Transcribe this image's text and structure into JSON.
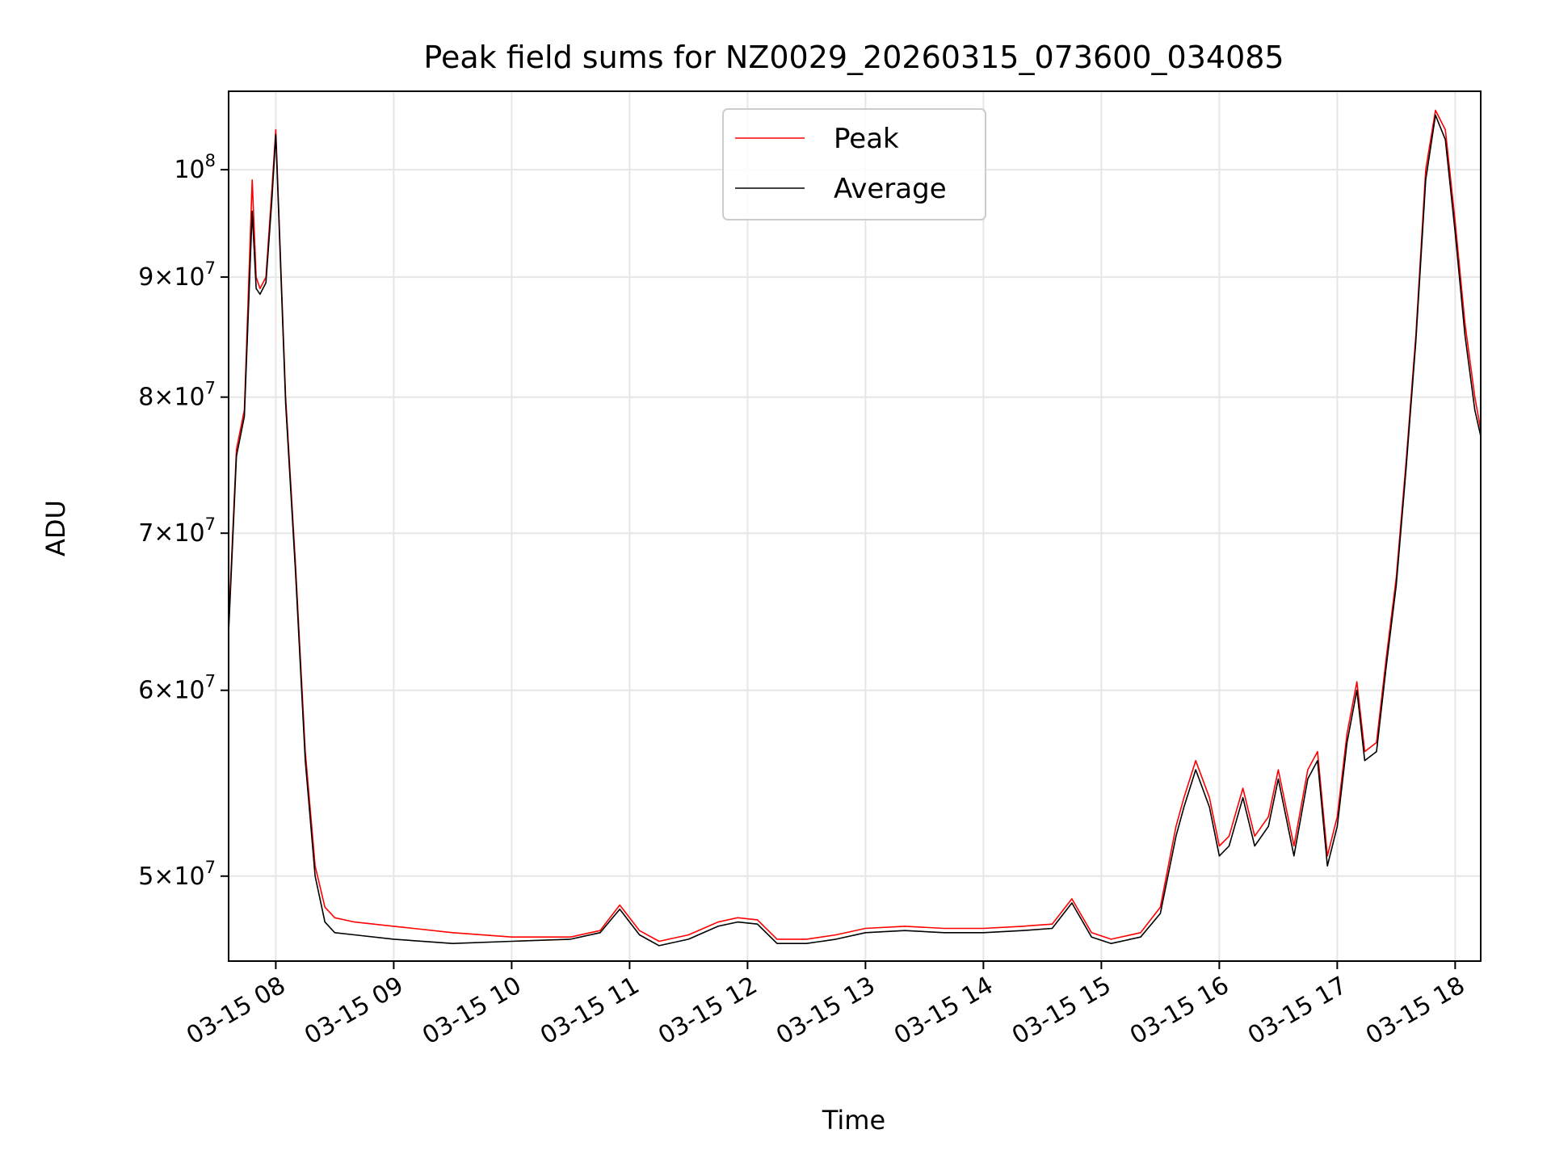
{
  "chart_data": {
    "type": "line",
    "title": "Peak field sums for NZ0029_20260315_073600_034085",
    "xlabel": "Time",
    "ylabel": "ADU",
    "y_scale": "log",
    "ylim": [
      46000000,
      108000000
    ],
    "xlim": [
      "2026-03-15 07:36",
      "2026-03-15 18:13"
    ],
    "grid": true,
    "legend_placement": "upper center",
    "x_ticks": [
      {
        "label": "03-15 08",
        "value": "2026-03-15 08:00"
      },
      {
        "label": "03-15 09",
        "value": "2026-03-15 09:00"
      },
      {
        "label": "03-15 10",
        "value": "2026-03-15 10:00"
      },
      {
        "label": "03-15 11",
        "value": "2026-03-15 11:00"
      },
      {
        "label": "03-15 12",
        "value": "2026-03-15 12:00"
      },
      {
        "label": "03-15 13",
        "value": "2026-03-15 13:00"
      },
      {
        "label": "03-15 14",
        "value": "2026-03-15 14:00"
      },
      {
        "label": "03-15 15",
        "value": "2026-03-15 15:00"
      },
      {
        "label": "03-15 16",
        "value": "2026-03-15 16:00"
      },
      {
        "label": "03-15 17",
        "value": "2026-03-15 17:00"
      },
      {
        "label": "03-15 18",
        "value": "2026-03-15 18:00"
      }
    ],
    "y_ticks": [
      {
        "value": 50000000,
        "mantissa": "5",
        "exponent": "7"
      },
      {
        "value": 60000000,
        "mantissa": "6",
        "exponent": "7"
      },
      {
        "value": 70000000,
        "mantissa": "7",
        "exponent": "7"
      },
      {
        "value": 80000000,
        "mantissa": "8",
        "exponent": "7"
      },
      {
        "value": 90000000,
        "mantissa": "9",
        "exponent": "7"
      },
      {
        "value": 100000000,
        "mantissa": "",
        "exponent": "8"
      }
    ],
    "tick_base": "10",
    "tick_times": "×",
    "series": [
      {
        "name": "Peak",
        "color": "#ff0000",
        "x": [
          "2026-03-15 07:36",
          "2026-03-15 07:40",
          "2026-03-15 07:44",
          "2026-03-15 07:48",
          "2026-03-15 07:50",
          "2026-03-15 07:52",
          "2026-03-15 07:55",
          "2026-03-15 07:58",
          "2026-03-15 08:00",
          "2026-03-15 08:05",
          "2026-03-15 08:10",
          "2026-03-15 08:15",
          "2026-03-15 08:20",
          "2026-03-15 08:25",
          "2026-03-15 08:30",
          "2026-03-15 08:40",
          "2026-03-15 09:00",
          "2026-03-15 09:30",
          "2026-03-15 10:00",
          "2026-03-15 10:30",
          "2026-03-15 10:45",
          "2026-03-15 10:55",
          "2026-03-15 11:05",
          "2026-03-15 11:15",
          "2026-03-15 11:30",
          "2026-03-15 11:45",
          "2026-03-15 11:55",
          "2026-03-15 12:05",
          "2026-03-15 12:15",
          "2026-03-15 12:30",
          "2026-03-15 12:45",
          "2026-03-15 13:00",
          "2026-03-15 13:20",
          "2026-03-15 13:40",
          "2026-03-15 14:00",
          "2026-03-15 14:20",
          "2026-03-15 14:35",
          "2026-03-15 14:45",
          "2026-03-15 14:55",
          "2026-03-15 15:05",
          "2026-03-15 15:20",
          "2026-03-15 15:30",
          "2026-03-15 15:38",
          "2026-03-15 15:42",
          "2026-03-15 15:48",
          "2026-03-15 15:55",
          "2026-03-15 16:00",
          "2026-03-15 16:05",
          "2026-03-15 16:12",
          "2026-03-15 16:18",
          "2026-03-15 16:25",
          "2026-03-15 16:30",
          "2026-03-15 16:38",
          "2026-03-15 16:45",
          "2026-03-15 16:50",
          "2026-03-15 16:55",
          "2026-03-15 17:00",
          "2026-03-15 17:05",
          "2026-03-15 17:10",
          "2026-03-15 17:14",
          "2026-03-15 17:20",
          "2026-03-15 17:25",
          "2026-03-15 17:30",
          "2026-03-15 17:35",
          "2026-03-15 17:40",
          "2026-03-15 17:45",
          "2026-03-15 17:50",
          "2026-03-15 17:55",
          "2026-03-15 18:00",
          "2026-03-15 18:05",
          "2026-03-15 18:10",
          "2026-03-15 18:13"
        ],
        "values": [
          64000000,
          76000000,
          79000000,
          99000000,
          90000000,
          89000000,
          90000000,
          98000000,
          104000000,
          80000000,
          68000000,
          56500000,
          50500000,
          48500000,
          48000000,
          47800000,
          47600000,
          47300000,
          47100000,
          47100000,
          47400000,
          48600000,
          47400000,
          46900000,
          47200000,
          47800000,
          48000000,
          47900000,
          47000000,
          47000000,
          47200000,
          47500000,
          47600000,
          47500000,
          47500000,
          47600000,
          47700000,
          48900000,
          47300000,
          47000000,
          47300000,
          48500000,
          52500000,
          54000000,
          56000000,
          54000000,
          51500000,
          52000000,
          54500000,
          52000000,
          53000000,
          55500000,
          51500000,
          55500000,
          56500000,
          51000000,
          53000000,
          57500000,
          60500000,
          56500000,
          57000000,
          62000000,
          67000000,
          75000000,
          85000000,
          100000000,
          106000000,
          104000000,
          95000000,
          86000000,
          80000000,
          77500000
        ]
      },
      {
        "name": "Average",
        "color": "#000000",
        "x": [
          "2026-03-15 07:36",
          "2026-03-15 07:40",
          "2026-03-15 07:44",
          "2026-03-15 07:48",
          "2026-03-15 07:50",
          "2026-03-15 07:52",
          "2026-03-15 07:55",
          "2026-03-15 07:58",
          "2026-03-15 08:00",
          "2026-03-15 08:05",
          "2026-03-15 08:10",
          "2026-03-15 08:15",
          "2026-03-15 08:20",
          "2026-03-15 08:25",
          "2026-03-15 08:30",
          "2026-03-15 08:40",
          "2026-03-15 09:00",
          "2026-03-15 09:30",
          "2026-03-15 10:00",
          "2026-03-15 10:30",
          "2026-03-15 10:45",
          "2026-03-15 10:55",
          "2026-03-15 11:05",
          "2026-03-15 11:15",
          "2026-03-15 11:30",
          "2026-03-15 11:45",
          "2026-03-15 11:55",
          "2026-03-15 12:05",
          "2026-03-15 12:15",
          "2026-03-15 12:30",
          "2026-03-15 12:45",
          "2026-03-15 13:00",
          "2026-03-15 13:20",
          "2026-03-15 13:40",
          "2026-03-15 14:00",
          "2026-03-15 14:20",
          "2026-03-15 14:35",
          "2026-03-15 14:45",
          "2026-03-15 14:55",
          "2026-03-15 15:05",
          "2026-03-15 15:20",
          "2026-03-15 15:30",
          "2026-03-15 15:38",
          "2026-03-15 15:42",
          "2026-03-15 15:48",
          "2026-03-15 15:55",
          "2026-03-15 16:00",
          "2026-03-15 16:05",
          "2026-03-15 16:12",
          "2026-03-15 16:18",
          "2026-03-15 16:25",
          "2026-03-15 16:30",
          "2026-03-15 16:38",
          "2026-03-15 16:45",
          "2026-03-15 16:50",
          "2026-03-15 16:55",
          "2026-03-15 17:00",
          "2026-03-15 17:05",
          "2026-03-15 17:10",
          "2026-03-15 17:14",
          "2026-03-15 17:20",
          "2026-03-15 17:25",
          "2026-03-15 17:30",
          "2026-03-15 17:35",
          "2026-03-15 17:40",
          "2026-03-15 17:45",
          "2026-03-15 17:50",
          "2026-03-15 17:55",
          "2026-03-15 18:00",
          "2026-03-15 18:05",
          "2026-03-15 18:10",
          "2026-03-15 18:13"
        ],
        "values": [
          63500000,
          75500000,
          78500000,
          96000000,
          89000000,
          88500000,
          89500000,
          97000000,
          103500000,
          79500000,
          67500000,
          56000000,
          50000000,
          47800000,
          47300000,
          47200000,
          47000000,
          46800000,
          46900000,
          47000000,
          47300000,
          48400000,
          47200000,
          46700000,
          47000000,
          47600000,
          47800000,
          47700000,
          46800000,
          46800000,
          47000000,
          47300000,
          47400000,
          47300000,
          47300000,
          47400000,
          47500000,
          48700000,
          47100000,
          46800000,
          47100000,
          48200000,
          52000000,
          53500000,
          55500000,
          53500000,
          51000000,
          51500000,
          54000000,
          51500000,
          52500000,
          55000000,
          51000000,
          55000000,
          56000000,
          50500000,
          52500000,
          57000000,
          60000000,
          56000000,
          56500000,
          61500000,
          66500000,
          74500000,
          84500000,
          99000000,
          105500000,
          103000000,
          94000000,
          85000000,
          79000000,
          77000000
        ]
      }
    ]
  }
}
